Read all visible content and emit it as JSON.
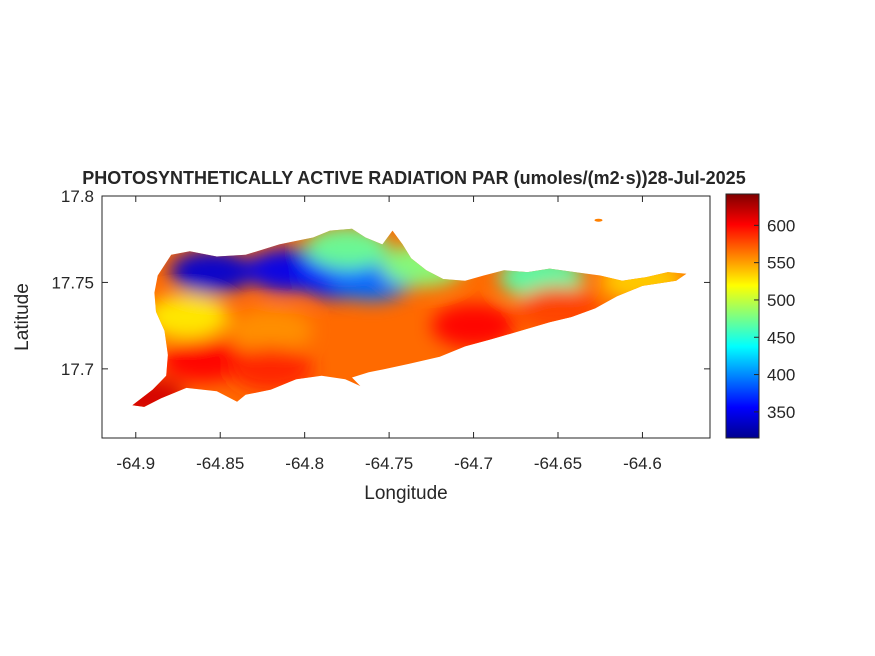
{
  "title": "PHOTOSYNTHETICALLY ACTIVE RADIATION PAR (umoles/(m2·s))28-Jul-2025",
  "chart_data": {
    "type": "heatmap",
    "title": "PHOTOSYNTHETICALLY ACTIVE RADIATION PAR (umoles/(m2·s))28-Jul-2025",
    "xlabel": "Longitude",
    "ylabel": "Latitude",
    "xlim": [
      -64.92,
      -64.56
    ],
    "ylim": [
      17.66,
      17.8
    ],
    "x_ticks": [
      "-64.9",
      "-64.85",
      "-64.8",
      "-64.75",
      "-64.7",
      "-64.65",
      "-64.6"
    ],
    "x_tick_values": [
      -64.9,
      -64.85,
      -64.8,
      -64.75,
      -64.7,
      -64.65,
      -64.6
    ],
    "y_ticks": [
      "17.7",
      "17.75",
      "17.8"
    ],
    "y_tick_values": [
      17.7,
      17.75,
      17.8
    ],
    "colormap": "jet",
    "colorbar": {
      "range": [
        315,
        642
      ],
      "ticks": [
        "350",
        "400",
        "450",
        "500",
        "550",
        "600"
      ],
      "tick_values": [
        350,
        400,
        450,
        500,
        550,
        600
      ]
    },
    "region_outline": [
      [
        -64.902,
        17.679
      ],
      [
        -64.89,
        17.688
      ],
      [
        -64.882,
        17.696
      ],
      [
        -64.881,
        17.708
      ],
      [
        -64.883,
        17.722
      ],
      [
        -64.888,
        17.733
      ],
      [
        -64.889,
        17.744
      ],
      [
        -64.887,
        17.754
      ],
      [
        -64.879,
        17.766
      ],
      [
        -64.868,
        17.768
      ],
      [
        -64.852,
        17.765
      ],
      [
        -64.835,
        17.766
      ],
      [
        -64.815,
        17.772
      ],
      [
        -64.805,
        17.774
      ],
      [
        -64.795,
        17.776
      ],
      [
        -64.785,
        17.78
      ],
      [
        -64.772,
        17.781
      ],
      [
        -64.764,
        17.776
      ],
      [
        -64.754,
        17.772
      ],
      [
        -64.748,
        17.78
      ],
      [
        -64.742,
        17.772
      ],
      [
        -64.737,
        17.764
      ],
      [
        -64.728,
        17.757
      ],
      [
        -64.718,
        17.752
      ],
      [
        -64.705,
        17.751
      ],
      [
        -64.694,
        17.754
      ],
      [
        -64.682,
        17.757
      ],
      [
        -64.668,
        17.756
      ],
      [
        -64.655,
        17.758
      ],
      [
        -64.64,
        17.756
      ],
      [
        -64.625,
        17.754
      ],
      [
        -64.612,
        17.751
      ],
      [
        -64.598,
        17.753
      ],
      [
        -64.585,
        17.756
      ],
      [
        -64.574,
        17.755
      ],
      [
        -64.58,
        17.751
      ],
      [
        -64.6,
        17.748
      ],
      [
        -64.615,
        17.742
      ],
      [
        -64.628,
        17.735
      ],
      [
        -64.642,
        17.73
      ],
      [
        -64.655,
        17.727
      ],
      [
        -64.672,
        17.722
      ],
      [
        -64.69,
        17.717
      ],
      [
        -64.705,
        17.713
      ],
      [
        -64.72,
        17.707
      ],
      [
        -64.738,
        17.703
      ],
      [
        -64.752,
        17.7
      ],
      [
        -64.762,
        17.698
      ],
      [
        -64.772,
        17.695
      ],
      [
        -64.767,
        17.69
      ],
      [
        -64.776,
        17.694
      ],
      [
        -64.79,
        17.696
      ],
      [
        -64.805,
        17.694
      ],
      [
        -64.82,
        17.688
      ],
      [
        -64.835,
        17.685
      ],
      [
        -64.84,
        17.681
      ],
      [
        -64.852,
        17.687
      ],
      [
        -64.87,
        17.689
      ],
      [
        -64.885,
        17.683
      ],
      [
        -64.895,
        17.678
      ]
    ],
    "islet": [
      -64.626,
      17.786
    ],
    "regions": [
      {
        "lon": -64.855,
        "lat": 17.756,
        "value": 340
      },
      {
        "lon": -64.81,
        "lat": 17.757,
        "value": 350
      },
      {
        "lon": -64.78,
        "lat": 17.753,
        "value": 365
      },
      {
        "lon": -64.76,
        "lat": 17.752,
        "value": 390
      },
      {
        "lon": -64.775,
        "lat": 17.77,
        "value": 470
      },
      {
        "lon": -64.73,
        "lat": 17.76,
        "value": 480
      },
      {
        "lon": -64.66,
        "lat": 17.753,
        "value": 465
      },
      {
        "lon": -64.6,
        "lat": 17.751,
        "value": 535
      },
      {
        "lon": -64.87,
        "lat": 17.73,
        "value": 525
      },
      {
        "lon": -64.82,
        "lat": 17.722,
        "value": 555
      },
      {
        "lon": -64.86,
        "lat": 17.705,
        "value": 600
      },
      {
        "lon": -64.82,
        "lat": 17.7,
        "value": 590
      },
      {
        "lon": -64.7,
        "lat": 17.725,
        "value": 600
      },
      {
        "lon": -64.65,
        "lat": 17.735,
        "value": 580
      },
      {
        "lon": -64.895,
        "lat": 17.683,
        "value": 615
      }
    ]
  }
}
